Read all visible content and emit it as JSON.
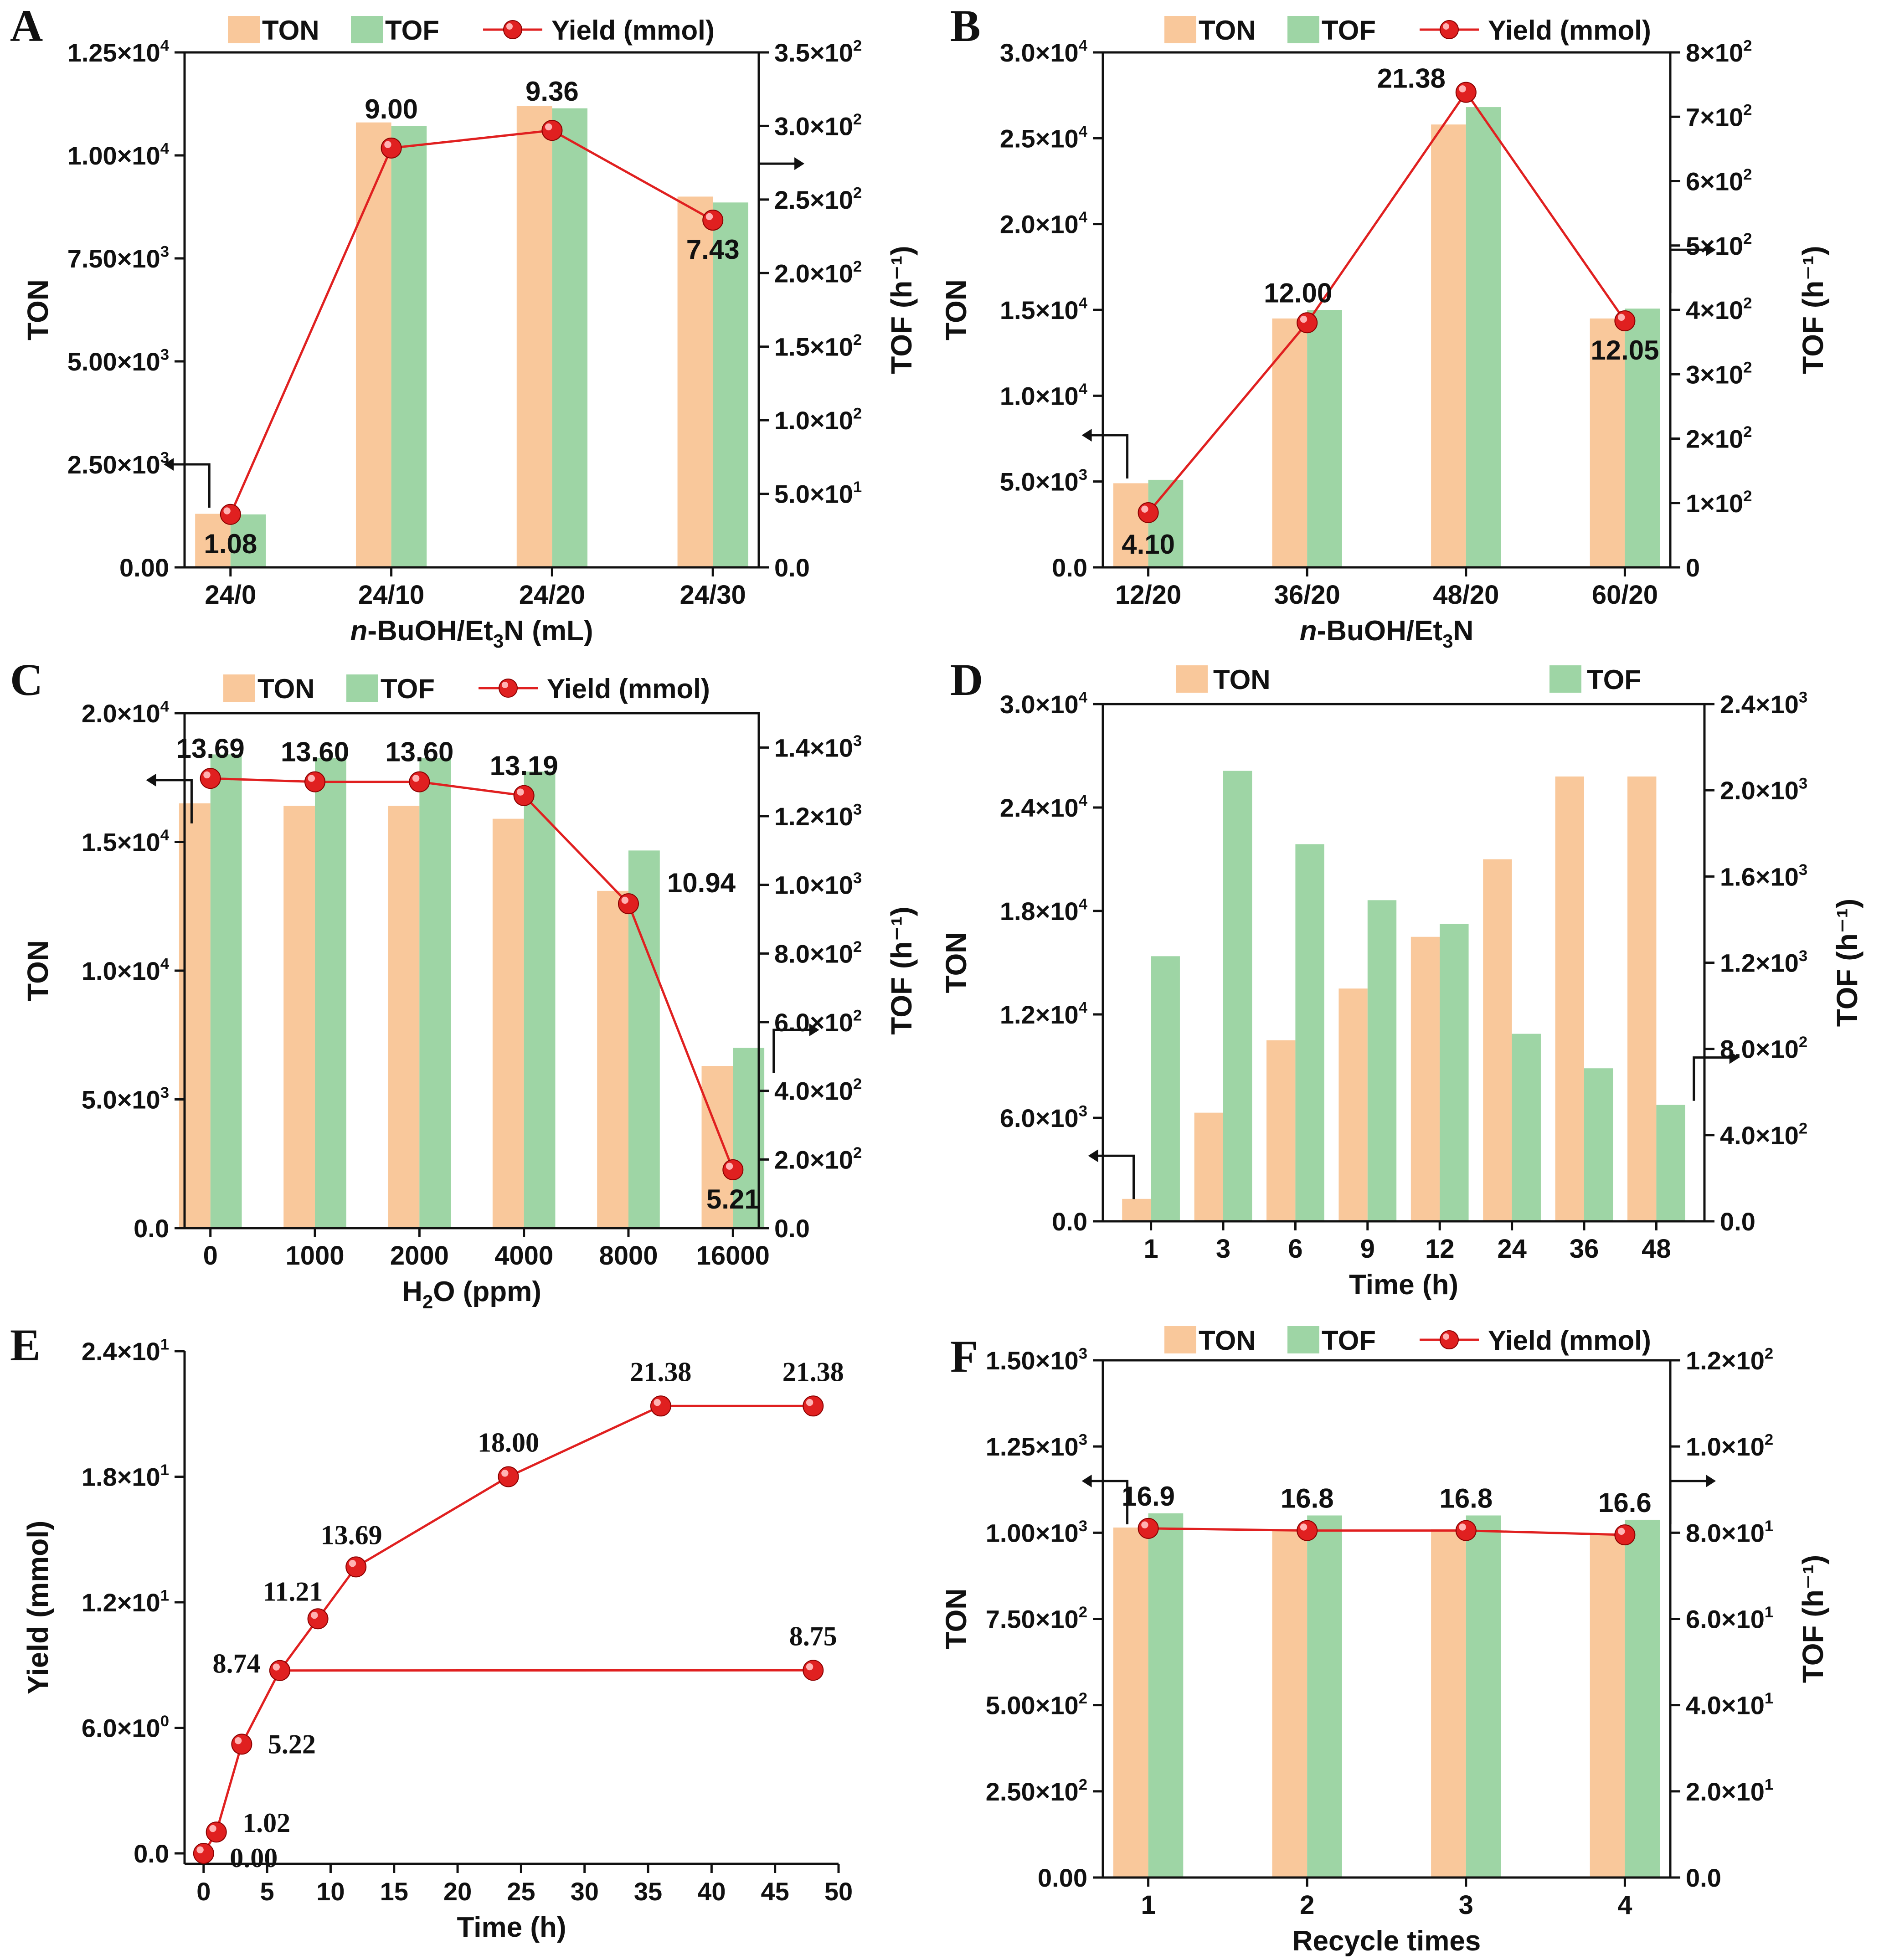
{
  "figure": {
    "colors": {
      "ton": "#F9C89B",
      "tof": "#9ED5A5",
      "yield": "#E02020",
      "axis": "#111111"
    }
  },
  "chart_data": [
    {
      "id": "A",
      "letter": "A",
      "type": "bar",
      "legend": {
        "ton": "TON",
        "tof": "TOF",
        "yield": "Yield (mmol)"
      },
      "xlabel": {
        "pre": "",
        "italic": "n",
        "main": "-BuOH/Et",
        "sub": "3",
        "post": "N (mL)"
      },
      "ylabel": "TON",
      "y2label": "TOF (h⁻¹)",
      "categories": [
        "24/0",
        "24/10",
        "24/20",
        "24/30"
      ],
      "ylim": [
        0,
        12500
      ],
      "y2lim": [
        0,
        350
      ],
      "yticks": [
        0,
        2500,
        5000,
        7500,
        10000,
        12500
      ],
      "ytick_labels": [
        {
          "m": "0.00",
          "e": ""
        },
        {
          "m": "2.50×10",
          "e": "3"
        },
        {
          "m": "5.00×10",
          "e": "3"
        },
        {
          "m": "7.50×10",
          "e": "3"
        },
        {
          "m": "1.00×10",
          "e": "4"
        },
        {
          "m": "1.25×10",
          "e": "4"
        }
      ],
      "y2ticks": [
        0,
        50,
        100,
        150,
        200,
        250,
        300,
        350
      ],
      "y2tick_labels": [
        {
          "m": "0.0",
          "e": ""
        },
        {
          "m": "5.0×10",
          "e": "1"
        },
        {
          "m": "1.0×10",
          "e": "2"
        },
        {
          "m": "1.5×10",
          "e": "2"
        },
        {
          "m": "2.0×10",
          "e": "2"
        },
        {
          "m": "2.5×10",
          "e": "2"
        },
        {
          "m": "3.0×10",
          "e": "2"
        },
        {
          "m": "3.5×10",
          "e": "2"
        }
      ],
      "ton": [
        1300,
        10800,
        11200,
        9000
      ],
      "tof": [
        36,
        300,
        312,
        248
      ],
      "yield": [
        1.08,
        9.0,
        9.36,
        7.43
      ],
      "yield_on_y2": [
        36,
        285,
        297,
        236
      ],
      "yield_labels": [
        "1.08",
        "9.00",
        "9.36",
        "7.43"
      ],
      "arrow_left_at": {
        "cat": 0,
        "value": 2500
      },
      "arrow_right_at": {
        "cat": 3,
        "value": 9800
      }
    },
    {
      "id": "B",
      "letter": "B",
      "type": "bar",
      "legend": {
        "ton": "TON",
        "tof": "TOF",
        "yield": "Yield (mmol)"
      },
      "xlabel": {
        "pre": "",
        "italic": "n",
        "main": "-BuOH/Et",
        "sub": "3",
        "post": "N"
      },
      "ylabel": "TON",
      "y2label": "TOF (h⁻¹)",
      "categories": [
        "12/20",
        "36/20",
        "48/20",
        "60/20"
      ],
      "ylim": [
        0,
        30000
      ],
      "y2lim": [
        0,
        800
      ],
      "yticks": [
        0,
        5000,
        10000,
        15000,
        20000,
        25000,
        30000
      ],
      "ytick_labels": [
        {
          "m": "0.0",
          "e": ""
        },
        {
          "m": "5.0×10",
          "e": "3"
        },
        {
          "m": "1.0×10",
          "e": "4"
        },
        {
          "m": "1.5×10",
          "e": "4"
        },
        {
          "m": "2.0×10",
          "e": "4"
        },
        {
          "m": "2.5×10",
          "e": "4"
        },
        {
          "m": "3.0×10",
          "e": "4"
        }
      ],
      "y2ticks": [
        0,
        100,
        200,
        300,
        400,
        500,
        600,
        700,
        800
      ],
      "y2tick_labels": [
        {
          "m": "0",
          "e": ""
        },
        {
          "m": "1×10",
          "e": "2"
        },
        {
          "m": "2×10",
          "e": "2"
        },
        {
          "m": "3×10",
          "e": "2"
        },
        {
          "m": "4×10",
          "e": "2"
        },
        {
          "m": "5×10",
          "e": "2"
        },
        {
          "m": "6×10",
          "e": "2"
        },
        {
          "m": "7×10",
          "e": "2"
        },
        {
          "m": "8×10",
          "e": "2"
        }
      ],
      "ton": [
        4900,
        14500,
        25800,
        14500
      ],
      "tof": [
        136,
        400,
        715,
        402
      ],
      "yield": [
        4.1,
        12.0,
        21.38,
        12.05
      ],
      "yield_on_y2": [
        85,
        380,
        738,
        383
      ],
      "yield_labels": [
        "4.10",
        "12.00",
        "21.38",
        "12.05"
      ],
      "arrow_left_at": {
        "cat": 0,
        "value": 7700
      },
      "arrow_right_at": {
        "cat": 3,
        "value": 18500
      }
    },
    {
      "id": "C",
      "letter": "C",
      "type": "bar",
      "legend": {
        "ton": "TON",
        "tof": "TOF",
        "yield": "Yield (mmol)"
      },
      "xlabel": {
        "pre": "H",
        "italic": "",
        "main": "",
        "sub": "2",
        "post": "O (ppm)"
      },
      "ylabel": "TON",
      "y2label": "TOF (h⁻¹)",
      "categories": [
        "0",
        "1000",
        "2000",
        "4000",
        "8000",
        "16000"
      ],
      "ylim": [
        0,
        20000
      ],
      "y2lim": [
        0,
        1500
      ],
      "yticks": [
        0,
        5000,
        10000,
        15000,
        20000
      ],
      "ytick_labels": [
        {
          "m": "0.0",
          "e": ""
        },
        {
          "m": "5.0×10",
          "e": "3"
        },
        {
          "m": "1.0×10",
          "e": "4"
        },
        {
          "m": "1.5×10",
          "e": "4"
        },
        {
          "m": "2.0×10",
          "e": "4"
        }
      ],
      "y2ticks": [
        0,
        200,
        400,
        600,
        800,
        1000,
        1200,
        1400
      ],
      "y2tick_labels": [
        {
          "m": "0.0",
          "e": ""
        },
        {
          "m": "2.0×10",
          "e": "2"
        },
        {
          "m": "4.0×10",
          "e": "2"
        },
        {
          "m": "6.0×10",
          "e": "2"
        },
        {
          "m": "8.0×10",
          "e": "2"
        },
        {
          "m": "1.0×10",
          "e": "3"
        },
        {
          "m": "1.2×10",
          "e": "3"
        },
        {
          "m": "1.4×10",
          "e": "3"
        }
      ],
      "ton": [
        16500,
        16400,
        16400,
        15900,
        13100,
        6300
      ],
      "tof": [
        1380,
        1370,
        1370,
        1330,
        1100,
        525
      ],
      "yield": [
        13.69,
        13.6,
        13.6,
        13.19,
        10.94,
        5.21
      ],
      "yield_on_y2": [
        1310,
        1300,
        1300,
        1260,
        945,
        170
      ],
      "yield_labels": [
        "13.69",
        "13.60",
        "13.60",
        "13.19",
        "10.94",
        "5.21"
      ],
      "arrow_left_at": {
        "cat": 0,
        "value": 17400
      },
      "arrow_right_at": {
        "cat": 5,
        "value": 7700
      }
    },
    {
      "id": "D",
      "letter": "D",
      "type": "bar",
      "legend": {
        "ton": "TON",
        "tof": "TOF"
      },
      "xlabel": {
        "pre": "Time (h)",
        "italic": "",
        "main": "",
        "sub": "",
        "post": ""
      },
      "ylabel": "TON",
      "y2label": "TOF (h⁻¹)",
      "categories": [
        "1",
        "3",
        "6",
        "9",
        "12",
        "24",
        "36",
        "48"
      ],
      "ylim": [
        0,
        30000
      ],
      "y2lim": [
        0,
        2400
      ],
      "yticks": [
        0,
        6000,
        12000,
        18000,
        24000,
        30000
      ],
      "ytick_labels": [
        {
          "m": "0.0",
          "e": ""
        },
        {
          "m": "6.0×10",
          "e": "3"
        },
        {
          "m": "1.2×10",
          "e": "4"
        },
        {
          "m": "1.8×10",
          "e": "4"
        },
        {
          "m": "2.4×10",
          "e": "4"
        },
        {
          "m": "3.0×10",
          "e": "4"
        }
      ],
      "y2ticks": [
        0,
        400,
        800,
        1200,
        1600,
        2000,
        2400
      ],
      "y2tick_labels": [
        {
          "m": "0.0",
          "e": ""
        },
        {
          "m": "4.0×10",
          "e": "2"
        },
        {
          "m": "8.0×10",
          "e": "2"
        },
        {
          "m": "1.2×10",
          "e": "3"
        },
        {
          "m": "1.6×10",
          "e": "3"
        },
        {
          "m": "2.0×10",
          "e": "3"
        },
        {
          "m": "2.4×10",
          "e": "3"
        }
      ],
      "ton": [
        1300,
        6300,
        10500,
        13500,
        16500,
        21000,
        25800,
        25800
      ],
      "tof": [
        1230,
        2090,
        1750,
        1490,
        1380,
        870,
        710,
        540
      ],
      "arrow_left_at": {
        "cat": 0,
        "value": 3800
      },
      "arrow_right_at": {
        "cat": 7,
        "value": 9500
      }
    },
    {
      "id": "E",
      "letter": "E",
      "type": "line",
      "xlabel": "Time (h)",
      "ylabel": "Yield (mmol)",
      "xlim": [
        -1.5,
        50
      ],
      "ylim": [
        -0.5,
        24
      ],
      "xticks": [
        0,
        5,
        10,
        15,
        20,
        25,
        30,
        35,
        40,
        45,
        50
      ],
      "yticks": [
        0,
        6,
        12,
        18,
        24
      ],
      "ytick_labels": [
        {
          "m": "0.0",
          "e": ""
        },
        {
          "m": "6.0×10",
          "e": "0"
        },
        {
          "m": "1.2×10",
          "e": "1"
        },
        {
          "m": "1.8×10",
          "e": "1"
        },
        {
          "m": "2.4×10",
          "e": "1"
        }
      ],
      "series": [
        {
          "name": "main",
          "x": [
            0,
            1,
            3,
            6,
            9,
            12,
            24,
            36,
            48
          ],
          "y": [
            0.0,
            1.02,
            5.22,
            8.74,
            11.21,
            13.69,
            18.0,
            21.38,
            21.38
          ],
          "labels": [
            "0.00",
            "1.02",
            "5.22",
            "8.74",
            "11.21",
            "13.69",
            "18.00",
            "21.38",
            "21.38"
          ]
        },
        {
          "name": "stopped",
          "x": [
            6,
            48
          ],
          "y": [
            8.74,
            8.75
          ],
          "labels": [
            "",
            "8.75"
          ]
        }
      ]
    },
    {
      "id": "F",
      "letter": "F",
      "type": "bar",
      "legend": {
        "ton": "TON",
        "tof": "TOF",
        "yield": "Yield (mmol)"
      },
      "xlabel": {
        "pre": "Recycle times",
        "italic": "",
        "main": "",
        "sub": "",
        "post": ""
      },
      "ylabel": "TON",
      "y2label": "TOF (h⁻¹)",
      "categories": [
        "1",
        "2",
        "3",
        "4"
      ],
      "ylim": [
        0,
        1500
      ],
      "y2lim": [
        0,
        120
      ],
      "yticks": [
        0,
        250,
        500,
        750,
        1000,
        1250,
        1500
      ],
      "ytick_labels": [
        {
          "m": "0.00",
          "e": ""
        },
        {
          "m": "2.50×10",
          "e": "2"
        },
        {
          "m": "5.00×10",
          "e": "2"
        },
        {
          "m": "7.50×10",
          "e": "2"
        },
        {
          "m": "1.00×10",
          "e": "3"
        },
        {
          "m": "1.25×10",
          "e": "3"
        },
        {
          "m": "1.50×10",
          "e": "3"
        }
      ],
      "y2ticks": [
        0,
        20,
        40,
        60,
        80,
        100,
        120
      ],
      "y2tick_labels": [
        {
          "m": "0.0",
          "e": ""
        },
        {
          "m": "2.0×10",
          "e": "1"
        },
        {
          "m": "4.0×10",
          "e": "1"
        },
        {
          "m": "6.0×10",
          "e": "1"
        },
        {
          "m": "8.0×10",
          "e": "1"
        },
        {
          "m": "1.0×10",
          "e": "2"
        },
        {
          "m": "1.2×10",
          "e": "2"
        }
      ],
      "ton": [
        1015,
        1010,
        1010,
        995
      ],
      "tof": [
        84.5,
        84.0,
        84.0,
        83.0
      ],
      "yield": [
        16.9,
        16.8,
        16.8,
        16.6
      ],
      "yield_on_y2": [
        81,
        80.5,
        80.5,
        79.5
      ],
      "yield_labels": [
        "16.9",
        "16.8",
        "16.8",
        "16.6"
      ],
      "arrow_left_at": {
        "cat": 0,
        "value": 1150
      },
      "arrow_right_at": {
        "cat": 3,
        "value": 1150
      }
    }
  ]
}
